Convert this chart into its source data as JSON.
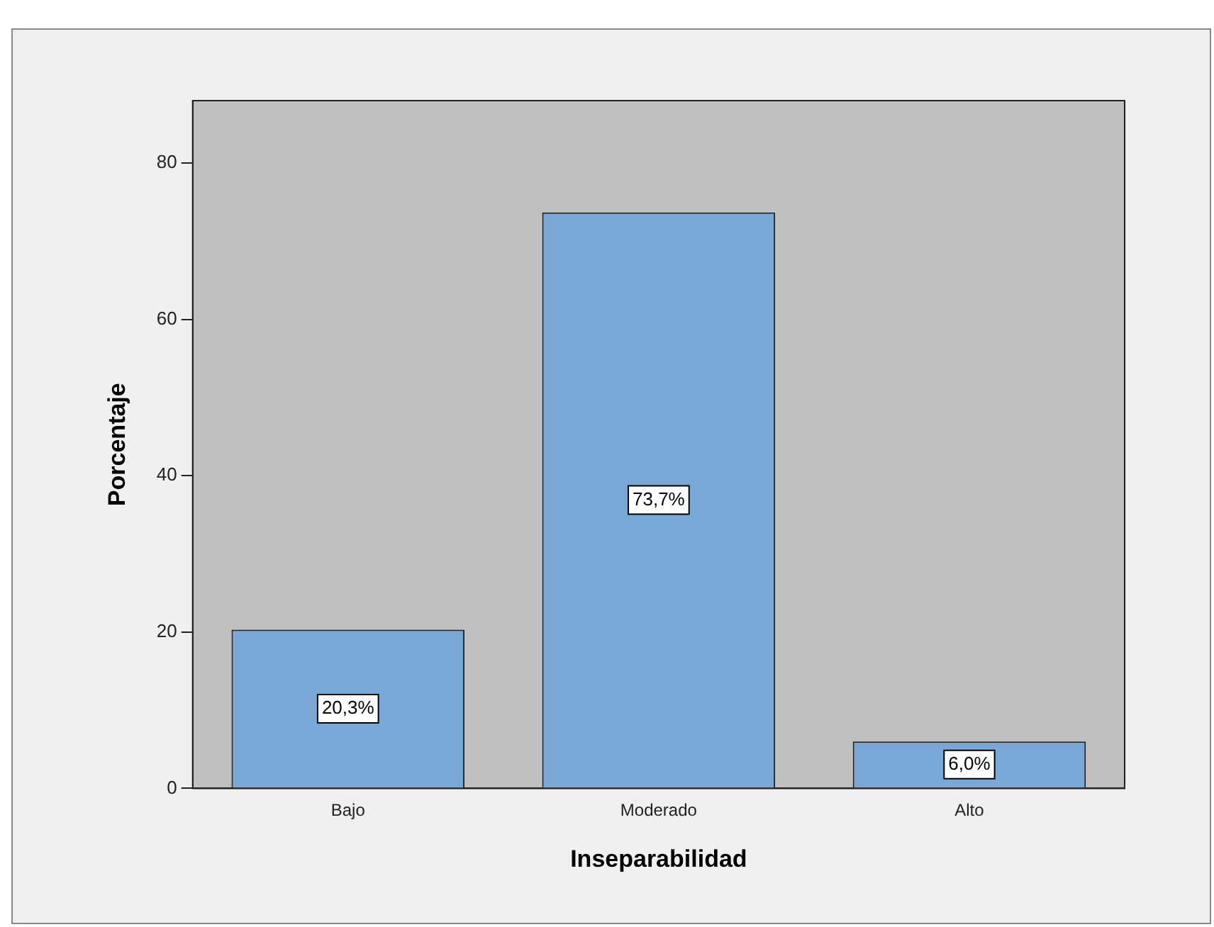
{
  "chart_data": {
    "type": "bar",
    "xlabel": "Inseparabilidad",
    "ylabel": "Porcentaje",
    "categories": [
      "Bajo",
      "Moderado",
      "Alto"
    ],
    "values": [
      20.3,
      73.7,
      6.0
    ],
    "value_labels": [
      "20,3%",
      "73,7%",
      "6,0%"
    ],
    "color": "#79a8d6",
    "ylim": [
      0,
      88
    ],
    "yticks": [
      0,
      20,
      40,
      60,
      80
    ],
    "grid": false,
    "legend": false
  }
}
